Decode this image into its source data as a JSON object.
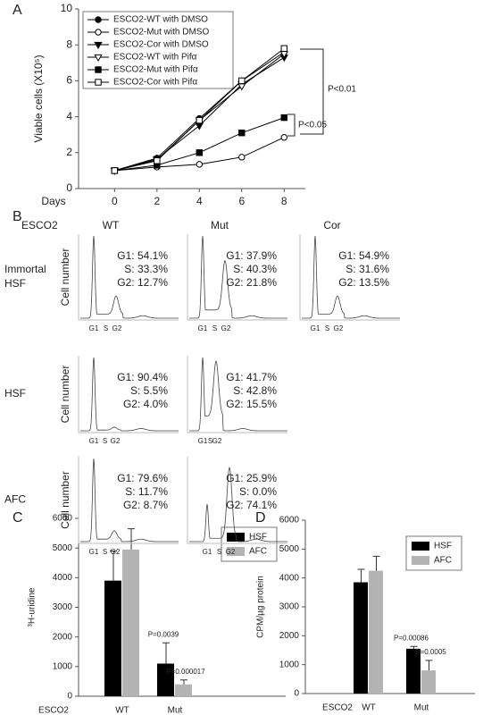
{
  "chart_data": [
    {
      "type": "line",
      "panel": "A",
      "x_label": "Days",
      "y_label": "Viable cells (X10⁵)",
      "x": [
        0,
        2,
        4,
        6,
        8
      ],
      "xlim": [
        -1.7,
        9
      ],
      "xticks": [
        0,
        2,
        4,
        6,
        8
      ],
      "ylim": [
        0,
        10
      ],
      "yticks": [
        0,
        2,
        4,
        6,
        8,
        10
      ],
      "series": [
        {
          "name": "ESCO2-WT with DMSO",
          "color": "#000000",
          "marker": "circle",
          "filled": true,
          "values": [
            1,
            1.7,
            3.9,
            6.0,
            7.6
          ]
        },
        {
          "name": "ESCO2-Mut with DMSO",
          "color": "#000000",
          "marker": "circle",
          "filled": false,
          "values": [
            1,
            1.2,
            1.35,
            1.75,
            2.85
          ]
        },
        {
          "name": "ESCO2-Cor with DMSO",
          "color": "#000000",
          "marker": "triangle-down",
          "filled": true,
          "values": [
            1,
            1.65,
            3.5,
            5.8,
            7.3
          ]
        },
        {
          "name": "ESCO2-WT with Pifα",
          "color": "#000000",
          "marker": "triangle-down",
          "filled": false,
          "values": [
            1,
            1.6,
            3.8,
            5.7,
            7.5
          ]
        },
        {
          "name": "ESCO2-Mut with Pifα",
          "color": "#000000",
          "marker": "square",
          "filled": true,
          "values": [
            1,
            1.3,
            2.0,
            3.1,
            3.95
          ]
        },
        {
          "name": "ESCO2-Cor with Pifα",
          "color": "#000000",
          "marker": "square",
          "filled": false,
          "values": [
            1,
            1.55,
            3.8,
            6.0,
            7.8
          ]
        }
      ],
      "annotations": [
        "P<0.01",
        "P<0.05"
      ]
    },
    {
      "type": "bar",
      "panel": "C",
      "x_label": "ESCO2",
      "y_label": "³H-uridine",
      "categories": [
        "WT",
        "Mut"
      ],
      "ylim": [
        0,
        6000
      ],
      "yticks": [
        0,
        1000,
        2000,
        3000,
        4000,
        5000,
        6000
      ],
      "series": [
        {
          "name": "HSF",
          "color": "#000000",
          "values": [
            3900,
            1100
          ],
          "errors": [
            1000,
            700
          ]
        },
        {
          "name": "AFC",
          "color": "#b3b3b3",
          "values": [
            4950,
            400
          ],
          "errors": [
            700,
            150
          ]
        }
      ],
      "annotations": [
        "P=0.0039",
        "P=0.000017"
      ]
    },
    {
      "type": "bar",
      "panel": "D",
      "x_label": "ESCO2",
      "y_label": "CPM/µg protein",
      "categories": [
        "WT",
        "Mut"
      ],
      "ylim": [
        0,
        6000
      ],
      "yticks": [
        0,
        1000,
        2000,
        3000,
        4000,
        5000,
        6000
      ],
      "series": [
        {
          "name": "HSF",
          "color": "#000000",
          "values": [
            3850,
            1550
          ],
          "errors": [
            450,
            80
          ]
        },
        {
          "name": "AFC",
          "color": "#b3b3b3",
          "values": [
            4250,
            800
          ],
          "errors": [
            500,
            350
          ]
        }
      ],
      "annotations": [
        "P=0.00086",
        "P=0.0005"
      ]
    }
  ],
  "flow_panel": {
    "panel": "B",
    "group_label": "ESCO2",
    "columns": [
      "WT",
      "Mut",
      "Cor"
    ],
    "rows": [
      {
        "label": [
          "Immortal",
          "HSF"
        ],
        "y_label": "Cell number",
        "plots": [
          {
            "stats": [
              "G1: 54.1%",
              "S: 33.3%",
              "G2: 12.7%"
            ],
            "phases": [
              "G1",
              "S",
              "G2"
            ]
          },
          {
            "stats": [
              "G1: 37.9%",
              "S: 40.3%",
              "G2: 21.8%"
            ],
            "phases": [
              "G1",
              "S",
              "G2"
            ]
          },
          {
            "stats": [
              "G1: 54.9%",
              "S: 31.6%",
              "G2: 13.5%"
            ],
            "phases": [
              "G1",
              "S",
              "G2"
            ]
          }
        ]
      },
      {
        "label": [
          "HSF"
        ],
        "y_label": "Cell number",
        "plots": [
          {
            "stats": [
              "G1: 90.4%",
              "S: 5.5%",
              "G2: 4.0%"
            ],
            "phases": [
              "G1",
              "S",
              "G2"
            ]
          },
          {
            "stats": [
              "G1: 41.7%",
              "S: 42.8%",
              "G2: 15.5%"
            ],
            "phases": [
              "G1",
              "S",
              "G2"
            ]
          }
        ]
      },
      {
        "label": [
          "AFC"
        ],
        "y_label": "Cell number",
        "plots": [
          {
            "stats": [
              "G1: 79.6%",
              "S: 11.7%",
              "G2: 8.7%"
            ],
            "phases": [
              "G1",
              "S",
              "G2"
            ]
          },
          {
            "stats": [
              "G1: 25.9%",
              "S: 0.0%",
              "G2: 74.1%"
            ],
            "phases": [
              "G1",
              "S",
              "G2"
            ]
          }
        ]
      }
    ]
  }
}
